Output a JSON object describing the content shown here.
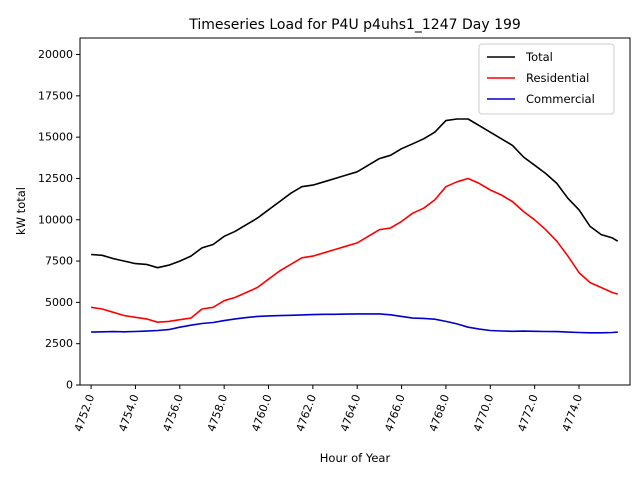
{
  "chart_data": {
    "type": "line",
    "title": "Timeseries Load for P4U p4uhs1_1247  Day 199",
    "xlabel": "Hour of Year",
    "ylabel": "kW total",
    "xlim": [
      4751.5,
      4776.3
    ],
    "ylim": [
      0,
      21000
    ],
    "x_ticks": [
      4752,
      4754,
      4756,
      4758,
      4760,
      4762,
      4764,
      4766,
      4768,
      4770,
      4772,
      4774
    ],
    "x_tick_labels": [
      "4752.0",
      "4754.0",
      "4756.0",
      "4758.0",
      "4760.0",
      "4762.0",
      "4764.0",
      "4766.0",
      "4768.0",
      "4770.0",
      "4772.0",
      "4774.0"
    ],
    "y_ticks": [
      0,
      2500,
      5000,
      7500,
      10000,
      12500,
      15000,
      17500,
      20000
    ],
    "y_tick_labels": [
      "0",
      "2500",
      "5000",
      "7500",
      "10000",
      "12500",
      "15000",
      "17500",
      "20000"
    ],
    "grid": false,
    "legend_position": "top-right",
    "x": [
      4752.0,
      4752.5,
      4753.0,
      4753.5,
      4754.0,
      4754.5,
      4755.0,
      4755.5,
      4756.0,
      4756.5,
      4757.0,
      4757.5,
      4758.0,
      4758.5,
      4759.0,
      4759.5,
      4760.0,
      4760.5,
      4761.0,
      4761.5,
      4762.0,
      4762.5,
      4763.0,
      4763.5,
      4764.0,
      4764.5,
      4765.0,
      4765.5,
      4766.0,
      4766.5,
      4767.0,
      4767.5,
      4768.0,
      4768.5,
      4769.0,
      4769.5,
      4770.0,
      4770.5,
      4771.0,
      4771.5,
      4772.0,
      4772.5,
      4773.0,
      4773.5,
      4774.0,
      4774.5,
      4775.0,
      4775.5,
      4775.75
    ],
    "series": [
      {
        "name": "Total",
        "color": "#000000",
        "values": [
          7900,
          7850,
          7650,
          7500,
          7350,
          7300,
          7100,
          7250,
          7500,
          7800,
          8300,
          8500,
          9000,
          9300,
          9700,
          10100,
          10600,
          11100,
          11600,
          12000,
          12100,
          12300,
          12500,
          12700,
          12900,
          13300,
          13700,
          13900,
          14300,
          14600,
          14900,
          15300,
          16000,
          16100,
          16100,
          15700,
          15300,
          14900,
          14500,
          13800,
          13300,
          12800,
          12200,
          11300,
          10600,
          9600,
          9100,
          8900,
          8700
        ]
      },
      {
        "name": "Residential",
        "color": "#ff0000",
        "values": [
          4700,
          4600,
          4400,
          4200,
          4100,
          4000,
          3800,
          3850,
          3950,
          4050,
          4600,
          4700,
          5100,
          5300,
          5600,
          5900,
          6400,
          6900,
          7300,
          7700,
          7800,
          8000,
          8200,
          8400,
          8600,
          9000,
          9400,
          9500,
          9900,
          10400,
          10700,
          11200,
          12000,
          12300,
          12500,
          12200,
          11800,
          11500,
          11100,
          10500,
          10000,
          9400,
          8700,
          7800,
          6800,
          6200,
          5900,
          5600,
          5500
        ]
      },
      {
        "name": "Commercial",
        "color": "#0000cc",
        "values": [
          3200,
          3220,
          3230,
          3220,
          3240,
          3260,
          3300,
          3350,
          3500,
          3620,
          3720,
          3780,
          3900,
          4000,
          4080,
          4150,
          4180,
          4200,
          4220,
          4240,
          4260,
          4280,
          4280,
          4290,
          4300,
          4300,
          4300,
          4250,
          4150,
          4050,
          4030,
          3980,
          3850,
          3700,
          3500,
          3380,
          3300,
          3270,
          3250,
          3260,
          3250,
          3240,
          3230,
          3200,
          3180,
          3160,
          3160,
          3180,
          3200
        ]
      }
    ]
  }
}
